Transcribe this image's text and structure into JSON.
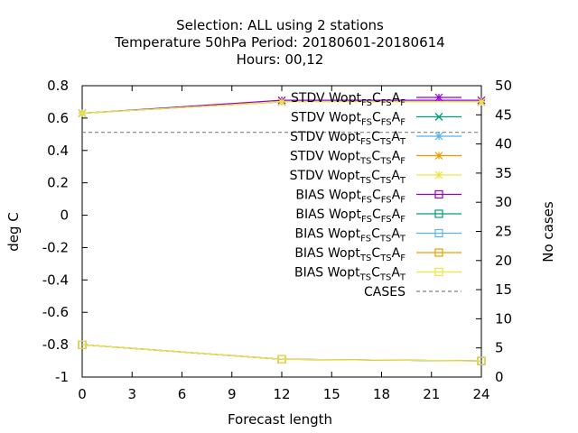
{
  "chart_data": {
    "type": "line",
    "title": {
      "line1": "Selection: ALL using     2 stations",
      "line2": "Temperature 50hPa   Period: 20180601-20180614",
      "line3": "Hours:  00,12"
    },
    "xlabel": "Forecast length",
    "ylabel": "deg C",
    "y2label": "No cases",
    "xlim": [
      0,
      24
    ],
    "ylim": [
      -1,
      0.8
    ],
    "y2lim": [
      0,
      50
    ],
    "xticks": [
      "0",
      "3",
      "6",
      "9",
      "12",
      "15",
      "18",
      "21",
      "24"
    ],
    "yticks": [
      "-1",
      "-0.8",
      "-0.6",
      "-0.4",
      "-0.2",
      "0",
      "0.2",
      "0.4",
      "0.6",
      "0.8"
    ],
    "y2ticks": [
      "0",
      "5",
      "10",
      "15",
      "20",
      "25",
      "30",
      "35",
      "40",
      "45",
      "50"
    ],
    "x": [
      0,
      12,
      24
    ],
    "legend_position": "top-right",
    "series": [
      {
        "prefix": "STDV Wopt",
        "s1": "FS",
        "s2": "FS",
        "s3": "F",
        "color": "#9400d3",
        "marker": "star",
        "dash": false,
        "axis": "y1",
        "values": [
          0.63,
          0.71,
          0.71
        ]
      },
      {
        "prefix": "STDV Wopt",
        "s1": "FS",
        "s2": "FS",
        "s3": "F",
        "color": "#009e73",
        "marker": "x",
        "dash": false,
        "axis": "y1",
        "values": [
          0.63,
          0.7,
          0.7
        ]
      },
      {
        "prefix": "STDV Wopt",
        "s1": "FS",
        "s2": "TS",
        "s3": "T",
        "color": "#56b4e9",
        "marker": "star",
        "dash": false,
        "axis": "y1",
        "values": [
          0.63,
          0.7,
          0.7
        ]
      },
      {
        "prefix": "STDV Wopt",
        "s1": "TS",
        "s2": "TS",
        "s3": "F",
        "color": "#e69f00",
        "marker": "star",
        "dash": false,
        "axis": "y1",
        "values": [
          0.63,
          0.7,
          0.7
        ]
      },
      {
        "prefix": "STDV Wopt",
        "s1": "TS",
        "s2": "TS",
        "s3": "T",
        "color": "#f0e442",
        "marker": "star",
        "dash": false,
        "axis": "y1",
        "values": [
          0.63,
          0.7,
          0.7
        ]
      },
      {
        "prefix": "BIAS Wopt",
        "s1": "FS",
        "s2": "FS",
        "s3": "F",
        "color": "#9400d3",
        "marker": "square",
        "dash": false,
        "axis": "y1",
        "values": [
          -0.8,
          -0.89,
          -0.9
        ]
      },
      {
        "prefix": "BIAS Wopt",
        "s1": "FS",
        "s2": "FS",
        "s3": "F",
        "color": "#009e73",
        "marker": "square",
        "dash": false,
        "axis": "y1",
        "values": [
          -0.8,
          -0.89,
          -0.9
        ]
      },
      {
        "prefix": "BIAS Wopt",
        "s1": "FS",
        "s2": "TS",
        "s3": "T",
        "color": "#56b4e9",
        "marker": "square",
        "dash": false,
        "axis": "y1",
        "values": [
          -0.8,
          -0.89,
          -0.9
        ]
      },
      {
        "prefix": "BIAS Wopt",
        "s1": "TS",
        "s2": "TS",
        "s3": "F",
        "color": "#e69f00",
        "marker": "square",
        "dash": false,
        "axis": "y1",
        "values": [
          -0.8,
          -0.89,
          -0.9
        ]
      },
      {
        "prefix": "BIAS Wopt",
        "s1": "TS",
        "s2": "TS",
        "s3": "T",
        "color": "#f0e442",
        "marker": "square",
        "dash": false,
        "axis": "y1",
        "values": [
          -0.8,
          -0.89,
          -0.9
        ]
      },
      {
        "prefix": "CASES",
        "s1": "",
        "s2": "",
        "s3": "",
        "color": "#808080",
        "marker": "none",
        "dash": true,
        "axis": "y2",
        "values": [
          42,
          42,
          42
        ]
      }
    ]
  }
}
